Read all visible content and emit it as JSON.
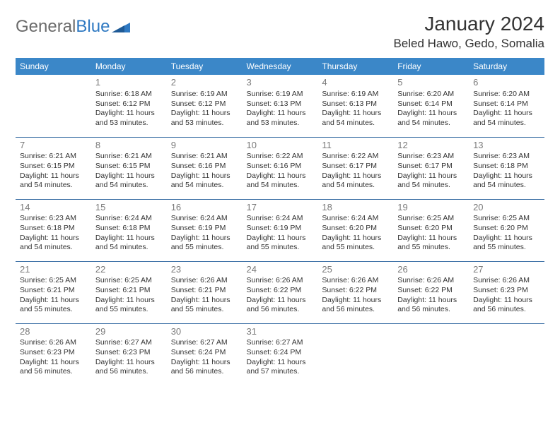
{
  "brand": {
    "general": "General",
    "blue": "Blue"
  },
  "header": {
    "month_title": "January 2024",
    "location": "Beled Hawo, Gedo, Somalia"
  },
  "colors": {
    "header_bg": "#3b87c8",
    "header_text": "#ffffff",
    "row_border": "#3b6fa5",
    "daynum": "#7a7a7a",
    "text": "#333333",
    "brand_gray": "#6b6b6b",
    "brand_blue": "#2f79c2"
  },
  "weekdays": [
    "Sunday",
    "Monday",
    "Tuesday",
    "Wednesday",
    "Thursday",
    "Friday",
    "Saturday"
  ],
  "weeks": [
    [
      null,
      {
        "num": "1",
        "sunrise": "Sunrise: 6:18 AM",
        "sunset": "Sunset: 6:12 PM",
        "day1": "Daylight: 11 hours",
        "day2": "and 53 minutes."
      },
      {
        "num": "2",
        "sunrise": "Sunrise: 6:19 AM",
        "sunset": "Sunset: 6:12 PM",
        "day1": "Daylight: 11 hours",
        "day2": "and 53 minutes."
      },
      {
        "num": "3",
        "sunrise": "Sunrise: 6:19 AM",
        "sunset": "Sunset: 6:13 PM",
        "day1": "Daylight: 11 hours",
        "day2": "and 53 minutes."
      },
      {
        "num": "4",
        "sunrise": "Sunrise: 6:19 AM",
        "sunset": "Sunset: 6:13 PM",
        "day1": "Daylight: 11 hours",
        "day2": "and 54 minutes."
      },
      {
        "num": "5",
        "sunrise": "Sunrise: 6:20 AM",
        "sunset": "Sunset: 6:14 PM",
        "day1": "Daylight: 11 hours",
        "day2": "and 54 minutes."
      },
      {
        "num": "6",
        "sunrise": "Sunrise: 6:20 AM",
        "sunset": "Sunset: 6:14 PM",
        "day1": "Daylight: 11 hours",
        "day2": "and 54 minutes."
      }
    ],
    [
      {
        "num": "7",
        "sunrise": "Sunrise: 6:21 AM",
        "sunset": "Sunset: 6:15 PM",
        "day1": "Daylight: 11 hours",
        "day2": "and 54 minutes."
      },
      {
        "num": "8",
        "sunrise": "Sunrise: 6:21 AM",
        "sunset": "Sunset: 6:15 PM",
        "day1": "Daylight: 11 hours",
        "day2": "and 54 minutes."
      },
      {
        "num": "9",
        "sunrise": "Sunrise: 6:21 AM",
        "sunset": "Sunset: 6:16 PM",
        "day1": "Daylight: 11 hours",
        "day2": "and 54 minutes."
      },
      {
        "num": "10",
        "sunrise": "Sunrise: 6:22 AM",
        "sunset": "Sunset: 6:16 PM",
        "day1": "Daylight: 11 hours",
        "day2": "and 54 minutes."
      },
      {
        "num": "11",
        "sunrise": "Sunrise: 6:22 AM",
        "sunset": "Sunset: 6:17 PM",
        "day1": "Daylight: 11 hours",
        "day2": "and 54 minutes."
      },
      {
        "num": "12",
        "sunrise": "Sunrise: 6:23 AM",
        "sunset": "Sunset: 6:17 PM",
        "day1": "Daylight: 11 hours",
        "day2": "and 54 minutes."
      },
      {
        "num": "13",
        "sunrise": "Sunrise: 6:23 AM",
        "sunset": "Sunset: 6:18 PM",
        "day1": "Daylight: 11 hours",
        "day2": "and 54 minutes."
      }
    ],
    [
      {
        "num": "14",
        "sunrise": "Sunrise: 6:23 AM",
        "sunset": "Sunset: 6:18 PM",
        "day1": "Daylight: 11 hours",
        "day2": "and 54 minutes."
      },
      {
        "num": "15",
        "sunrise": "Sunrise: 6:24 AM",
        "sunset": "Sunset: 6:18 PM",
        "day1": "Daylight: 11 hours",
        "day2": "and 54 minutes."
      },
      {
        "num": "16",
        "sunrise": "Sunrise: 6:24 AM",
        "sunset": "Sunset: 6:19 PM",
        "day1": "Daylight: 11 hours",
        "day2": "and 55 minutes."
      },
      {
        "num": "17",
        "sunrise": "Sunrise: 6:24 AM",
        "sunset": "Sunset: 6:19 PM",
        "day1": "Daylight: 11 hours",
        "day2": "and 55 minutes."
      },
      {
        "num": "18",
        "sunrise": "Sunrise: 6:24 AM",
        "sunset": "Sunset: 6:20 PM",
        "day1": "Daylight: 11 hours",
        "day2": "and 55 minutes."
      },
      {
        "num": "19",
        "sunrise": "Sunrise: 6:25 AM",
        "sunset": "Sunset: 6:20 PM",
        "day1": "Daylight: 11 hours",
        "day2": "and 55 minutes."
      },
      {
        "num": "20",
        "sunrise": "Sunrise: 6:25 AM",
        "sunset": "Sunset: 6:20 PM",
        "day1": "Daylight: 11 hours",
        "day2": "and 55 minutes."
      }
    ],
    [
      {
        "num": "21",
        "sunrise": "Sunrise: 6:25 AM",
        "sunset": "Sunset: 6:21 PM",
        "day1": "Daylight: 11 hours",
        "day2": "and 55 minutes."
      },
      {
        "num": "22",
        "sunrise": "Sunrise: 6:25 AM",
        "sunset": "Sunset: 6:21 PM",
        "day1": "Daylight: 11 hours",
        "day2": "and 55 minutes."
      },
      {
        "num": "23",
        "sunrise": "Sunrise: 6:26 AM",
        "sunset": "Sunset: 6:21 PM",
        "day1": "Daylight: 11 hours",
        "day2": "and 55 minutes."
      },
      {
        "num": "24",
        "sunrise": "Sunrise: 6:26 AM",
        "sunset": "Sunset: 6:22 PM",
        "day1": "Daylight: 11 hours",
        "day2": "and 56 minutes."
      },
      {
        "num": "25",
        "sunrise": "Sunrise: 6:26 AM",
        "sunset": "Sunset: 6:22 PM",
        "day1": "Daylight: 11 hours",
        "day2": "and 56 minutes."
      },
      {
        "num": "26",
        "sunrise": "Sunrise: 6:26 AM",
        "sunset": "Sunset: 6:22 PM",
        "day1": "Daylight: 11 hours",
        "day2": "and 56 minutes."
      },
      {
        "num": "27",
        "sunrise": "Sunrise: 6:26 AM",
        "sunset": "Sunset: 6:23 PM",
        "day1": "Daylight: 11 hours",
        "day2": "and 56 minutes."
      }
    ],
    [
      {
        "num": "28",
        "sunrise": "Sunrise: 6:26 AM",
        "sunset": "Sunset: 6:23 PM",
        "day1": "Daylight: 11 hours",
        "day2": "and 56 minutes."
      },
      {
        "num": "29",
        "sunrise": "Sunrise: 6:27 AM",
        "sunset": "Sunset: 6:23 PM",
        "day1": "Daylight: 11 hours",
        "day2": "and 56 minutes."
      },
      {
        "num": "30",
        "sunrise": "Sunrise: 6:27 AM",
        "sunset": "Sunset: 6:24 PM",
        "day1": "Daylight: 11 hours",
        "day2": "and 56 minutes."
      },
      {
        "num": "31",
        "sunrise": "Sunrise: 6:27 AM",
        "sunset": "Sunset: 6:24 PM",
        "day1": "Daylight: 11 hours",
        "day2": "and 57 minutes."
      },
      null,
      null,
      null
    ]
  ]
}
